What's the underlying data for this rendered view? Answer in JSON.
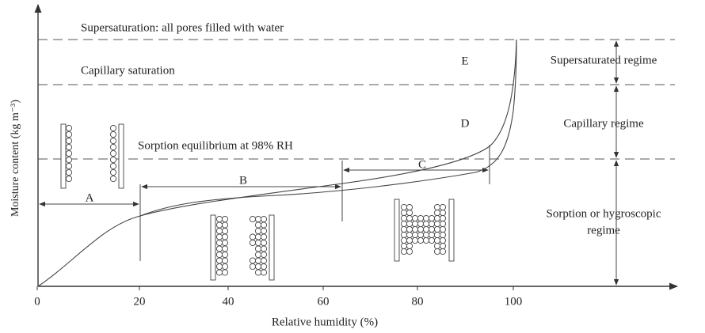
{
  "axes": {
    "y_label": "Moisture content (kg m⁻³)",
    "x_label": "Relative humidity (%)",
    "x_ticks": [
      "0",
      "20",
      "40",
      "60",
      "80",
      "100"
    ]
  },
  "levels": [
    "Supersaturation: all pores filled with water",
    "Capillary saturation",
    "Sorption equilibrium at 98% RH"
  ],
  "regions": [
    "A",
    "B",
    "C",
    "D",
    "E"
  ],
  "regimes": {
    "supersaturated": "Supersaturated regime",
    "capillary": "Capillary regime",
    "sorption": [
      "Sorption or hygroscopic",
      "regime"
    ]
  }
}
